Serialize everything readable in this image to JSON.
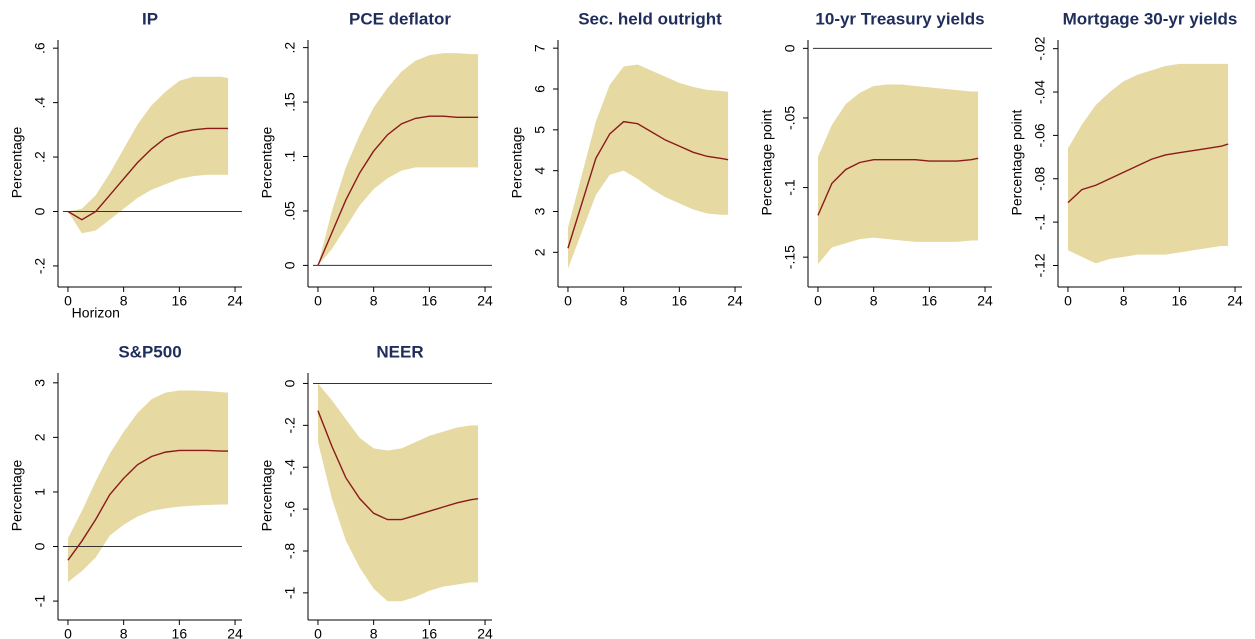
{
  "chart_data": [
    {
      "type": "line",
      "title": "IP",
      "ylabel": "Percentage",
      "xlabel": "Horizon",
      "x": [
        0,
        2,
        4,
        6,
        8,
        10,
        12,
        14,
        16,
        18,
        20,
        22,
        23
      ],
      "values": [
        0,
        -0.03,
        0.0,
        0.06,
        0.12,
        0.18,
        0.23,
        0.27,
        0.29,
        0.3,
        0.305,
        0.305,
        0.305
      ],
      "lower": [
        0,
        -0.08,
        -0.07,
        -0.03,
        0.01,
        0.05,
        0.08,
        0.1,
        0.12,
        0.13,
        0.135,
        0.135,
        0.135
      ],
      "upper": [
        0,
        0.01,
        0.06,
        0.14,
        0.23,
        0.32,
        0.39,
        0.44,
        0.48,
        0.495,
        0.495,
        0.495,
        0.49
      ],
      "xlim": [
        -1,
        25
      ],
      "ylim": [
        -0.27,
        0.63
      ],
      "xticks": [
        0,
        8,
        16,
        24
      ],
      "yticks": [
        {
          "value": -0.2,
          "label": "-.2"
        },
        0,
        {
          "value": 0.2,
          "label": ".2"
        },
        {
          "value": 0.4,
          "label": ".4"
        },
        {
          "value": 0.6,
          "label": ".6"
        }
      ],
      "refline": 0,
      "color": "#8b1a1a",
      "band_color": "#e6d9a2"
    },
    {
      "type": "line",
      "title": "PCE deflator",
      "ylabel": "Percentage",
      "x": [
        0,
        2,
        4,
        6,
        8,
        10,
        12,
        14,
        16,
        18,
        20,
        22,
        23
      ],
      "values": [
        0,
        0.03,
        0.06,
        0.085,
        0.105,
        0.12,
        0.13,
        0.135,
        0.137,
        0.137,
        0.136,
        0.136,
        0.136
      ],
      "lower": [
        0,
        0.015,
        0.035,
        0.055,
        0.07,
        0.08,
        0.087,
        0.09,
        0.09,
        0.09,
        0.09,
        0.09,
        0.09
      ],
      "upper": [
        0,
        0.05,
        0.09,
        0.12,
        0.145,
        0.163,
        0.178,
        0.188,
        0.193,
        0.195,
        0.195,
        0.194,
        0.194
      ],
      "xlim": [
        -1,
        25
      ],
      "ylim": [
        -0.018,
        0.207
      ],
      "xticks": [
        0,
        8,
        16,
        24
      ],
      "yticks": [
        0,
        {
          "value": 0.05,
          "label": ".05"
        },
        {
          "value": 0.1,
          "label": ".1"
        },
        {
          "value": 0.15,
          "label": ".15"
        },
        {
          "value": 0.2,
          "label": ".2"
        }
      ],
      "refline": 0,
      "color": "#8b1a1a",
      "band_color": "#e6d9a2"
    },
    {
      "type": "line",
      "title": "Sec. held outright",
      "ylabel": "Percentage",
      "x": [
        0,
        2,
        4,
        6,
        8,
        10,
        12,
        14,
        16,
        18,
        20,
        22,
        23
      ],
      "values": [
        2.1,
        3.2,
        4.3,
        4.9,
        5.2,
        5.15,
        4.95,
        4.75,
        4.6,
        4.45,
        4.35,
        4.3,
        4.27
      ],
      "lower": [
        1.6,
        2.5,
        3.4,
        3.9,
        4.0,
        3.8,
        3.55,
        3.35,
        3.2,
        3.05,
        2.95,
        2.92,
        2.92
      ],
      "upper": [
        2.6,
        3.9,
        5.2,
        6.1,
        6.55,
        6.6,
        6.45,
        6.3,
        6.15,
        6.05,
        5.98,
        5.95,
        5.93
      ],
      "xlim": [
        -1,
        25
      ],
      "ylim": [
        1.2,
        7.2
      ],
      "xticks": [
        0,
        8,
        16,
        24
      ],
      "yticks": [
        2,
        3,
        4,
        5,
        6,
        7
      ],
      "color": "#8b1a1a",
      "band_color": "#e6d9a2"
    },
    {
      "type": "line",
      "title": "10-yr Treasury yields",
      "ylabel": "Percentage point",
      "x": [
        0,
        2,
        4,
        6,
        8,
        10,
        12,
        14,
        16,
        18,
        20,
        22,
        23
      ],
      "values": [
        -0.12,
        -0.097,
        -0.087,
        -0.082,
        -0.08,
        -0.08,
        -0.08,
        -0.08,
        -0.081,
        -0.081,
        -0.081,
        -0.08,
        -0.079
      ],
      "lower": [
        -0.155,
        -0.143,
        -0.14,
        -0.137,
        -0.136,
        -0.137,
        -0.138,
        -0.139,
        -0.139,
        -0.139,
        -0.139,
        -0.138,
        -0.138
      ],
      "upper": [
        -0.078,
        -0.055,
        -0.04,
        -0.032,
        -0.027,
        -0.026,
        -0.026,
        -0.027,
        -0.028,
        -0.029,
        -0.03,
        -0.031,
        -0.031
      ],
      "xlim": [
        -1,
        25
      ],
      "ylim": [
        -0.17,
        0.006
      ],
      "xticks": [
        0,
        8,
        16,
        24
      ],
      "yticks": [
        {
          "value": -0.15,
          "label": "-.15"
        },
        {
          "value": -0.1,
          "label": "-.1"
        },
        {
          "value": -0.05,
          "label": "-.05"
        },
        0
      ],
      "refline": 0,
      "color": "#8b1a1a",
      "band_color": "#e6d9a2"
    },
    {
      "type": "line",
      "title": "Mortgage 30-yr yields",
      "ylabel": "Percentage point",
      "x": [
        0,
        2,
        4,
        6,
        8,
        10,
        12,
        14,
        16,
        18,
        20,
        22,
        23
      ],
      "values": [
        -0.091,
        -0.085,
        -0.083,
        -0.08,
        -0.077,
        -0.074,
        -0.071,
        -0.069,
        -0.068,
        -0.067,
        -0.066,
        -0.065,
        -0.064
      ],
      "lower": [
        -0.113,
        -0.116,
        -0.119,
        -0.117,
        -0.116,
        -0.115,
        -0.115,
        -0.115,
        -0.114,
        -0.113,
        -0.112,
        -0.111,
        -0.111
      ],
      "upper": [
        -0.066,
        -0.055,
        -0.046,
        -0.04,
        -0.035,
        -0.032,
        -0.03,
        -0.028,
        -0.027,
        -0.027,
        -0.027,
        -0.027,
        -0.027
      ],
      "xlim": [
        -1,
        25
      ],
      "ylim": [
        -0.129,
        -0.016
      ],
      "xticks": [
        0,
        8,
        16,
        24
      ],
      "yticks": [
        {
          "value": -0.12,
          "label": "-.12"
        },
        {
          "value": -0.1,
          "label": "-.1"
        },
        {
          "value": -0.08,
          "label": "-.08"
        },
        {
          "value": -0.06,
          "label": "-.06"
        },
        {
          "value": -0.04,
          "label": "-.04"
        },
        {
          "value": -0.02,
          "label": "-.02"
        }
      ],
      "color": "#8b1a1a",
      "band_color": "#e6d9a2"
    },
    {
      "type": "line",
      "title": "S&P500",
      "ylabel": "Percentage",
      "x": [
        0,
        2,
        4,
        6,
        8,
        10,
        12,
        14,
        16,
        18,
        20,
        22,
        23
      ],
      "values": [
        -0.25,
        0.1,
        0.5,
        0.95,
        1.25,
        1.5,
        1.65,
        1.73,
        1.76,
        1.76,
        1.76,
        1.75,
        1.75
      ],
      "lower": [
        -0.65,
        -0.45,
        -0.2,
        0.2,
        0.4,
        0.55,
        0.65,
        0.7,
        0.73,
        0.75,
        0.76,
        0.77,
        0.77
      ],
      "upper": [
        0.15,
        0.65,
        1.2,
        1.7,
        2.1,
        2.45,
        2.7,
        2.82,
        2.86,
        2.86,
        2.85,
        2.83,
        2.82
      ],
      "xlim": [
        -1,
        25
      ],
      "ylim": [
        -1.31,
        3.18
      ],
      "xticks": [
        0,
        8,
        16,
        24
      ],
      "yticks": [
        -1,
        0,
        1,
        2,
        3
      ],
      "refline": 0,
      "color": "#8b1a1a",
      "band_color": "#e6d9a2"
    },
    {
      "type": "line",
      "title": "NEER",
      "ylabel": "Percentage",
      "x": [
        0,
        2,
        4,
        6,
        8,
        10,
        12,
        14,
        16,
        18,
        20,
        22,
        23
      ],
      "values": [
        -0.13,
        -0.3,
        -0.45,
        -0.55,
        -0.62,
        -0.65,
        -0.65,
        -0.63,
        -0.61,
        -0.59,
        -0.57,
        -0.555,
        -0.55
      ],
      "lower": [
        -0.28,
        -0.55,
        -0.75,
        -0.88,
        -0.98,
        -1.04,
        -1.04,
        -1.02,
        -0.99,
        -0.97,
        -0.96,
        -0.95,
        -0.95
      ],
      "upper": [
        0,
        -0.08,
        -0.17,
        -0.26,
        -0.31,
        -0.32,
        -0.31,
        -0.28,
        -0.25,
        -0.23,
        -0.21,
        -0.2,
        -0.2
      ],
      "xlim": [
        -1,
        25
      ],
      "ylim": [
        -1.12,
        0.05
      ],
      "xticks": [
        0,
        8,
        16,
        24
      ],
      "yticks": [
        -1,
        {
          "value": -0.8,
          "label": "-.8"
        },
        {
          "value": -0.6,
          "label": "-.6"
        },
        {
          "value": -0.4,
          "label": "-.4"
        },
        {
          "value": -0.2,
          "label": "-.2"
        },
        0
      ],
      "refline": 0,
      "color": "#8b1a1a",
      "band_color": "#e6d9a2"
    }
  ]
}
